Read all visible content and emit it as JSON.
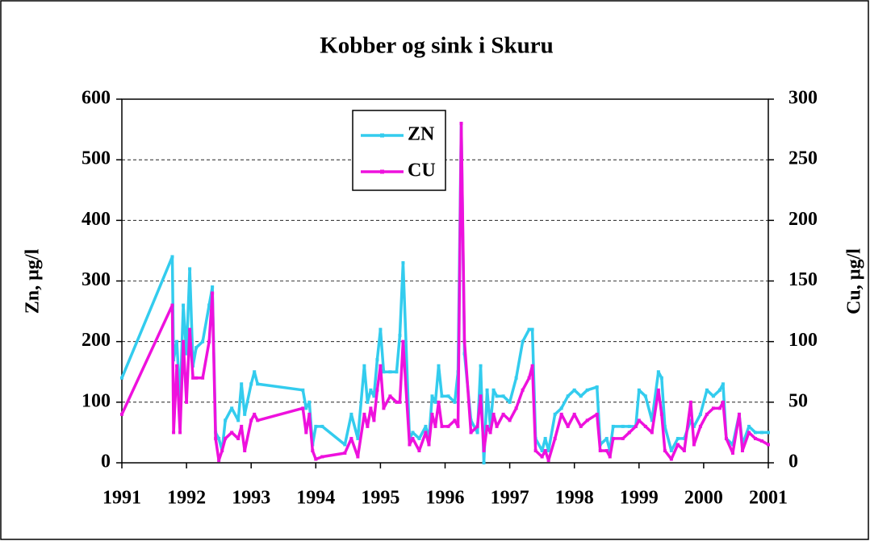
{
  "chart_data": {
    "type": "line",
    "title": "Kobber og sink i Skuru",
    "y_label": "Zn, µg/l",
    "y2_label": "Cu, µg/l",
    "x": [
      1991.0,
      1991.78,
      1991.8,
      1991.85,
      1991.9,
      1991.95,
      1992.0,
      1992.05,
      1992.1,
      1992.15,
      1992.25,
      1992.35,
      1992.4,
      1992.45,
      1992.5,
      1992.55,
      1992.6,
      1992.7,
      1992.8,
      1992.85,
      1992.9,
      1993.0,
      1993.05,
      1993.1,
      1993.8,
      1993.85,
      1993.9,
      1993.95,
      1994.0,
      1994.1,
      1994.45,
      1994.55,
      1994.65,
      1994.75,
      1994.8,
      1994.85,
      1994.9,
      1994.95,
      1995.0,
      1995.05,
      1995.15,
      1995.25,
      1995.3,
      1995.35,
      1995.45,
      1995.5,
      1995.6,
      1995.7,
      1995.75,
      1995.8,
      1995.85,
      1995.9,
      1995.95,
      1996.05,
      1996.15,
      1996.2,
      1996.25,
      1996.3,
      1996.4,
      1996.5,
      1996.55,
      1996.6,
      1996.65,
      1996.7,
      1996.75,
      1996.8,
      1996.9,
      1997.0,
      1997.1,
      1997.2,
      1997.3,
      1997.35,
      1997.4,
      1997.5,
      1997.55,
      1997.6,
      1997.7,
      1997.8,
      1997.9,
      1998.0,
      1998.1,
      1998.2,
      1998.35,
      1998.4,
      1998.5,
      1998.55,
      1998.6,
      1998.75,
      1998.85,
      1998.95,
      1999.0,
      1999.1,
      1999.2,
      1999.3,
      1999.35,
      1999.4,
      1999.5,
      1999.6,
      1999.7,
      1999.8,
      1999.85,
      1999.95,
      2000.05,
      2000.15,
      2000.25,
      2000.3,
      2000.35,
      2000.45,
      2000.55,
      2000.6,
      2000.7,
      2000.8,
      2000.9,
      2001.0
    ],
    "series": [
      {
        "name": "ZN",
        "color": "#33ccee",
        "axis": "y",
        "values": [
          140,
          340,
          170,
          200,
          100,
          260,
          180,
          320,
          160,
          190,
          200,
          260,
          290,
          50,
          40,
          20,
          70,
          90,
          70,
          130,
          80,
          130,
          150,
          130,
          120,
          90,
          100,
          30,
          60,
          60,
          30,
          80,
          40,
          160,
          100,
          120,
          110,
          170,
          220,
          150,
          150,
          150,
          210,
          330,
          40,
          50,
          40,
          60,
          40,
          110,
          100,
          160,
          110,
          110,
          100,
          150,
          560,
          180,
          70,
          50,
          160,
          0,
          120,
          60,
          120,
          110,
          110,
          100,
          140,
          200,
          220,
          220,
          40,
          20,
          40,
          20,
          80,
          90,
          110,
          120,
          110,
          120,
          125,
          30,
          40,
          20,
          60,
          60,
          60,
          60,
          120,
          110,
          70,
          150,
          140,
          60,
          20,
          40,
          40,
          70,
          60,
          80,
          120,
          110,
          120,
          130,
          40,
          30,
          80,
          30,
          60,
          50,
          50,
          50
        ]
      },
      {
        "name": "CU",
        "color": "#ee11dd",
        "axis": "y2",
        "values": [
          40,
          130,
          25,
          80,
          25,
          100,
          50,
          110,
          70,
          70,
          70,
          100,
          140,
          20,
          2,
          10,
          20,
          25,
          20,
          30,
          10,
          35,
          40,
          35,
          45,
          25,
          40,
          10,
          3,
          5,
          8,
          20,
          5,
          40,
          30,
          45,
          35,
          60,
          80,
          45,
          55,
          50,
          50,
          100,
          15,
          20,
          10,
          25,
          15,
          40,
          30,
          50,
          30,
          30,
          35,
          30,
          280,
          100,
          25,
          30,
          55,
          10,
          30,
          25,
          40,
          30,
          40,
          35,
          45,
          60,
          70,
          80,
          10,
          5,
          10,
          2,
          20,
          40,
          30,
          40,
          30,
          35,
          40,
          10,
          10,
          5,
          20,
          20,
          25,
          30,
          35,
          30,
          25,
          60,
          40,
          10,
          3,
          15,
          10,
          50,
          15,
          30,
          40,
          45,
          45,
          50,
          20,
          8,
          40,
          10,
          25,
          20,
          18,
          15
        ]
      }
    ],
    "xlim": [
      1991,
      2001
    ],
    "xticks": [
      1991,
      1992,
      1993,
      1994,
      1995,
      1996,
      1997,
      1998,
      1999,
      2000,
      2001
    ],
    "ylim": [
      0,
      600
    ],
    "yticks": [
      0,
      100,
      200,
      300,
      400,
      500,
      600
    ],
    "y2lim": [
      0,
      300
    ],
    "y2ticks": [
      0,
      50,
      100,
      150,
      200,
      250,
      300
    ],
    "grid": true
  }
}
